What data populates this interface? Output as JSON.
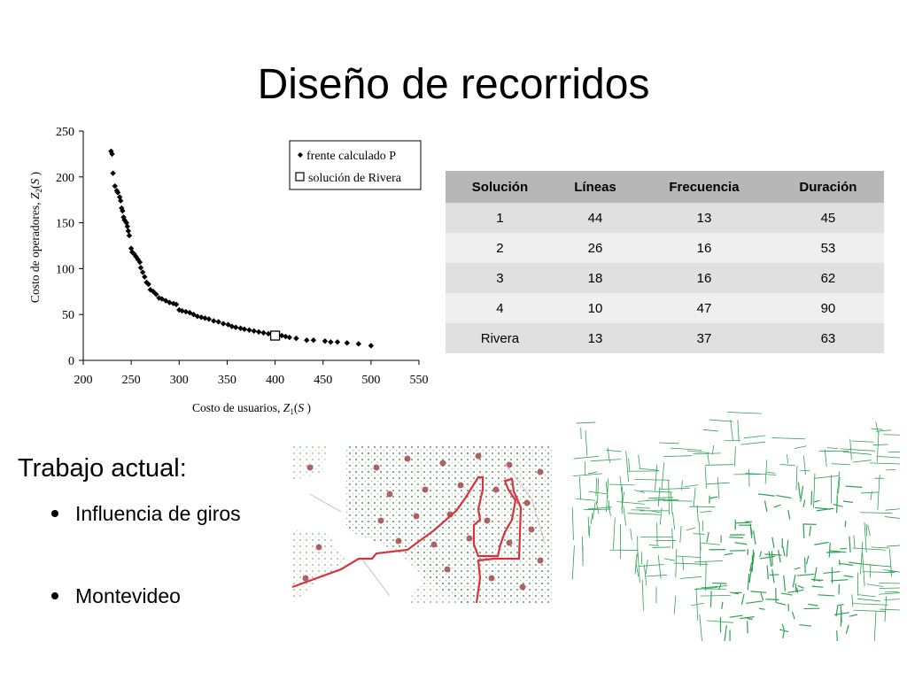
{
  "slide": {
    "title": "Diseño de recorridos"
  },
  "chart_data": {
    "type": "scatter",
    "xlim": [
      200,
      550
    ],
    "ylim": [
      0,
      250
    ],
    "x_ticks": [
      "200",
      "250",
      "300",
      "350",
      "400",
      "450",
      "500",
      "550"
    ],
    "y_ticks": [
      "0",
      "50",
      "100",
      "150",
      "200",
      "250"
    ],
    "xlabel_parts": [
      "Costo de usuarios, ",
      "Z",
      "1",
      "(",
      "S",
      " )"
    ],
    "ylabel_parts": [
      "Costo de operadores, ",
      "Z",
      "2",
      "(",
      "S",
      " )"
    ],
    "grid": false,
    "legend_position": "top-right",
    "series": [
      {
        "name": "frente calculado P",
        "marker": "diamond",
        "points": [
          [
            229,
            228
          ],
          [
            230,
            225
          ],
          [
            231,
            204
          ],
          [
            233,
            190
          ],
          [
            235,
            185
          ],
          [
            236,
            183
          ],
          [
            238,
            178
          ],
          [
            239,
            174
          ],
          [
            240,
            166
          ],
          [
            241,
            163
          ],
          [
            242,
            156
          ],
          [
            243,
            153
          ],
          [
            245,
            150
          ],
          [
            246,
            146
          ],
          [
            247,
            141
          ],
          [
            248,
            136
          ],
          [
            250,
            122
          ],
          [
            251,
            118
          ],
          [
            253,
            116
          ],
          [
            255,
            113
          ],
          [
            257,
            110
          ],
          [
            259,
            107
          ],
          [
            260,
            101
          ],
          [
            262,
            96
          ],
          [
            264,
            91
          ],
          [
            266,
            85
          ],
          [
            268,
            83
          ],
          [
            270,
            77
          ],
          [
            273,
            75
          ],
          [
            276,
            72
          ],
          [
            279,
            68
          ],
          [
            282,
            67
          ],
          [
            286,
            65
          ],
          [
            290,
            63
          ],
          [
            294,
            62
          ],
          [
            297,
            61
          ],
          [
            300,
            55
          ],
          [
            303,
            54
          ],
          [
            307,
            53
          ],
          [
            311,
            52
          ],
          [
            315,
            50
          ],
          [
            319,
            48
          ],
          [
            323,
            47
          ],
          [
            327,
            46
          ],
          [
            331,
            45
          ],
          [
            336,
            43
          ],
          [
            341,
            42
          ],
          [
            346,
            40
          ],
          [
            351,
            39
          ],
          [
            355,
            37
          ],
          [
            359,
            36
          ],
          [
            364,
            35
          ],
          [
            368,
            34
          ],
          [
            373,
            33
          ],
          [
            378,
            32
          ],
          [
            383,
            31
          ],
          [
            388,
            30
          ],
          [
            393,
            29
          ],
          [
            397,
            28
          ],
          [
            402,
            28
          ],
          [
            407,
            27
          ],
          [
            411,
            26
          ],
          [
            415,
            25
          ],
          [
            422,
            24
          ],
          [
            433,
            22
          ],
          [
            440,
            22
          ],
          [
            452,
            21
          ],
          [
            458,
            20
          ],
          [
            465,
            20
          ],
          [
            475,
            19
          ],
          [
            487,
            18
          ],
          [
            500,
            16
          ]
        ]
      },
      {
        "name": "solución de Rivera",
        "marker": "square",
        "points": [
          [
            400,
            27
          ]
        ]
      }
    ]
  },
  "table": {
    "headers": [
      "Solución",
      "Líneas",
      "Frecuencia",
      "Duración"
    ],
    "rows": [
      [
        "1",
        "44",
        "13",
        "45"
      ],
      [
        "2",
        "26",
        "16",
        "53"
      ],
      [
        "3",
        "18",
        "16",
        "62"
      ],
      [
        "4",
        "10",
        "47",
        "90"
      ],
      [
        "Rivera",
        "13",
        "37",
        "63"
      ]
    ]
  },
  "work": {
    "heading": "Trabajo actual:",
    "bullets": [
      "Influencia de giros",
      "Montevideo"
    ]
  },
  "colors": {
    "route_line": "#d8323a",
    "stops": "#a24a4a",
    "network": "#2ea152",
    "table_header": "#b7b7b7",
    "table_row_dark": "#e0e0e0",
    "table_row_light": "#efefef"
  },
  "images": {
    "route_map_icon": "route-map-image",
    "network_map_icon": "montevideo-street-network-image"
  }
}
